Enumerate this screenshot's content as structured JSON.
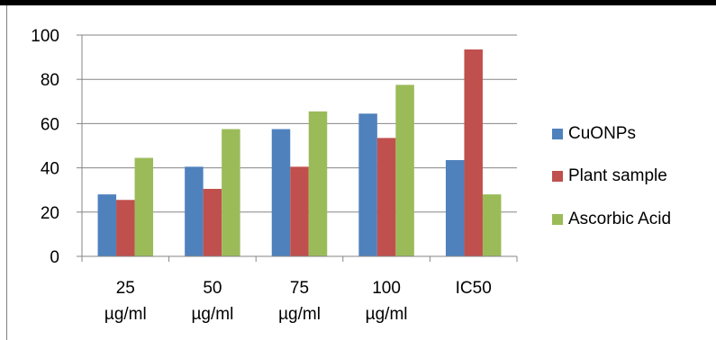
{
  "chart_data": {
    "type": "bar",
    "categories": [
      [
        "25",
        "µg/ml"
      ],
      [
        "50",
        "µg/ml"
      ],
      [
        "75",
        "µg/ml"
      ],
      [
        "100",
        "µg/ml"
      ],
      [
        "IC50"
      ]
    ],
    "series": [
      {
        "name": "CuONPs",
        "color": "#4f81bd",
        "values": [
          28,
          40.5,
          57.5,
          64.5,
          43.5
        ]
      },
      {
        "name": "Plant sample",
        "color": "#c0504d",
        "values": [
          25.5,
          30.5,
          40.5,
          53.5,
          93.5
        ]
      },
      {
        "name": "Ascorbic Acid",
        "color": "#9bbb59",
        "values": [
          44.5,
          57.5,
          65.5,
          77.5,
          28
        ]
      }
    ],
    "ylim": [
      0,
      100
    ],
    "yticks": [
      0,
      20,
      40,
      60,
      80,
      100
    ],
    "grid": true,
    "legend_position": "right",
    "title": "",
    "xlabel": "",
    "ylabel": ""
  }
}
